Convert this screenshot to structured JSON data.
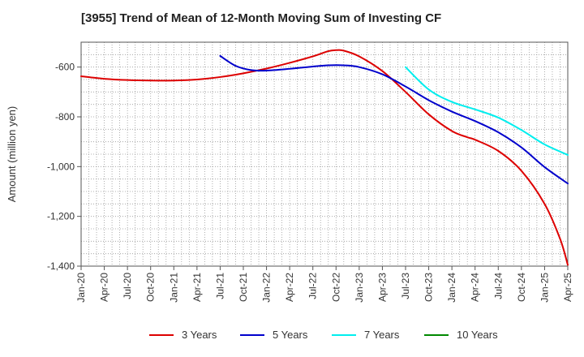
{
  "chart_data": {
    "type": "line",
    "title": "[3955]  Trend of Mean of 12-Month Moving Sum of Investing CF",
    "xlabel": "",
    "ylabel": "Amount (million yen)",
    "ylim": [
      -1400,
      -500
    ],
    "yticks": [
      -600,
      -800,
      -1000,
      -1200,
      -1400
    ],
    "ytick_labels": [
      "-600",
      "-800",
      "-1,000",
      "-1,200",
      "-1,400"
    ],
    "x_range_months": [
      0,
      63
    ],
    "xticks": [
      {
        "label": "Jan-20",
        "m": 0
      },
      {
        "label": "Apr-20",
        "m": 3
      },
      {
        "label": "Jul-20",
        "m": 6
      },
      {
        "label": "Oct-20",
        "m": 9
      },
      {
        "label": "Jan-21",
        "m": 12
      },
      {
        "label": "Apr-21",
        "m": 15
      },
      {
        "label": "Jul-21",
        "m": 18
      },
      {
        "label": "Oct-21",
        "m": 21
      },
      {
        "label": "Jan-22",
        "m": 24
      },
      {
        "label": "Apr-22",
        "m": 27
      },
      {
        "label": "Jul-22",
        "m": 30
      },
      {
        "label": "Oct-22",
        "m": 33
      },
      {
        "label": "Jan-23",
        "m": 36
      },
      {
        "label": "Apr-23",
        "m": 39
      },
      {
        "label": "Jul-23",
        "m": 42
      },
      {
        "label": "Oct-23",
        "m": 45
      },
      {
        "label": "Jan-24",
        "m": 48
      },
      {
        "label": "Apr-24",
        "m": 51
      },
      {
        "label": "Jul-24",
        "m": 54
      },
      {
        "label": "Oct-24",
        "m": 57
      },
      {
        "label": "Jan-25",
        "m": 60
      },
      {
        "label": "Apr-25",
        "m": 63
      }
    ],
    "grid": true,
    "series": [
      {
        "name": "3 Years",
        "color": "#dd0000",
        "points": [
          [
            0,
            -637
          ],
          [
            3,
            -647
          ],
          [
            6,
            -652
          ],
          [
            9,
            -654
          ],
          [
            12,
            -654
          ],
          [
            15,
            -650
          ],
          [
            18,
            -640
          ],
          [
            21,
            -625
          ],
          [
            24,
            -606
          ],
          [
            27,
            -583
          ],
          [
            30,
            -557
          ],
          [
            32,
            -536
          ],
          [
            33,
            -532
          ],
          [
            34,
            -534
          ],
          [
            36,
            -557
          ],
          [
            39,
            -616
          ],
          [
            42,
            -700
          ],
          [
            45,
            -790
          ],
          [
            48,
            -857
          ],
          [
            50,
            -882
          ],
          [
            51,
            -892
          ],
          [
            54,
            -937
          ],
          [
            57,
            -1017
          ],
          [
            60,
            -1150
          ],
          [
            62,
            -1290
          ],
          [
            63,
            -1395
          ]
        ]
      },
      {
        "name": "5 Years",
        "color": "#0000cc",
        "points": [
          [
            18,
            -555
          ],
          [
            20,
            -595
          ],
          [
            22,
            -612
          ],
          [
            24,
            -614
          ],
          [
            27,
            -607
          ],
          [
            30,
            -598
          ],
          [
            32,
            -593
          ],
          [
            34,
            -593
          ],
          [
            36,
            -600
          ],
          [
            39,
            -629
          ],
          [
            42,
            -678
          ],
          [
            45,
            -733
          ],
          [
            48,
            -779
          ],
          [
            51,
            -817
          ],
          [
            54,
            -862
          ],
          [
            57,
            -923
          ],
          [
            60,
            -1002
          ],
          [
            63,
            -1068
          ]
        ]
      },
      {
        "name": "7 Years",
        "color": "#00eeee",
        "points": [
          [
            42,
            -600
          ],
          [
            45,
            -690
          ],
          [
            48,
            -740
          ],
          [
            51,
            -770
          ],
          [
            54,
            -803
          ],
          [
            57,
            -853
          ],
          [
            60,
            -911
          ],
          [
            63,
            -953
          ]
        ]
      },
      {
        "name": "10 Years",
        "color": "#008800",
        "points": []
      }
    ]
  }
}
